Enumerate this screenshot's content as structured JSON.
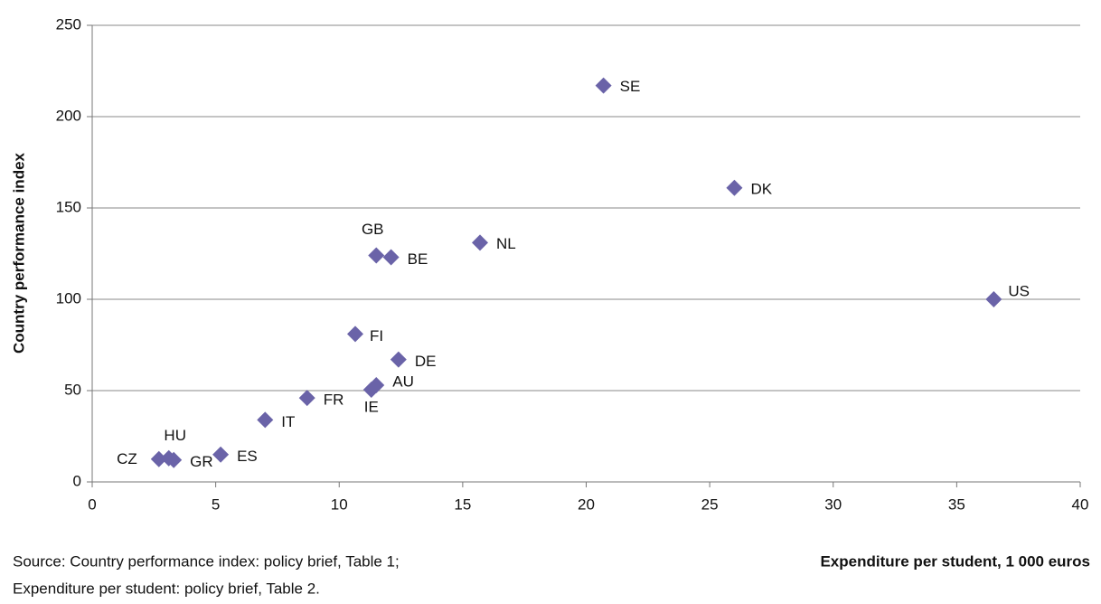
{
  "chart_data": {
    "type": "scatter",
    "xlabel": "Expenditure per student, 1 000 euros",
    "ylabel": "Country performance index",
    "source": [
      "Source: Country performance index: policy brief, Table 1;",
      "Expenditure per student: policy brief, Table 2."
    ],
    "color": "#6a63a8",
    "grid": true,
    "xlim": [
      0,
      40
    ],
    "xticks": [
      0,
      5,
      10,
      15,
      20,
      25,
      30,
      35,
      40
    ],
    "ylim": [
      0,
      250
    ],
    "yticks": [
      0,
      50,
      100,
      150,
      200,
      250
    ],
    "labels": [
      "SE",
      "DK",
      "NL",
      "GB",
      "BE",
      "US",
      "FI",
      "DE",
      "AU",
      "IE",
      "FR",
      "IT",
      "ES",
      "HU",
      "GR",
      "CZ"
    ],
    "x": [
      20.7,
      26.0,
      15.7,
      11.5,
      12.1,
      36.5,
      10.65,
      12.4,
      11.5,
      11.3,
      8.7,
      7.0,
      5.2,
      3.1,
      3.3,
      2.7
    ],
    "values": [
      217,
      161,
      131,
      124,
      123,
      100,
      81,
      67,
      53,
      50.5,
      46,
      34,
      15,
      13,
      12,
      12.5
    ]
  }
}
